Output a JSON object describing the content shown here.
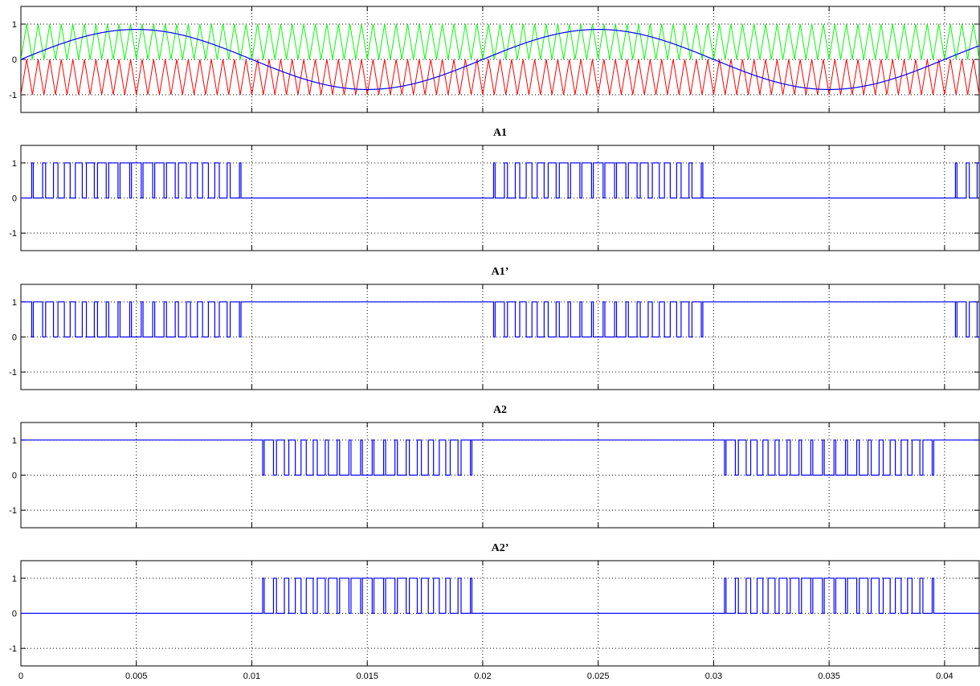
{
  "chart_data": [
    {
      "type": "line",
      "title": "",
      "xlabel": "",
      "ylabel": "",
      "xlim": [
        0,
        0.0415
      ],
      "ylim": [
        -1.5,
        1.5
      ],
      "yticks": [
        -1,
        0,
        1
      ],
      "grid": true,
      "series": [
        {
          "kind": "triangle_carrier",
          "color": "#00ff00",
          "frequency_hz": 2000,
          "min": 0,
          "max": 1
        },
        {
          "kind": "triangle_carrier",
          "color": "#ff0000",
          "frequency_hz": 2000,
          "min": -1,
          "max": 0
        },
        {
          "kind": "sine_reference",
          "color": "#0000ff",
          "frequency_hz": 50,
          "amplitude": 0.85,
          "phase_deg": 0
        }
      ]
    },
    {
      "type": "line",
      "title": "A1",
      "xlabel": "",
      "ylabel": "",
      "xlim": [
        0,
        0.0415
      ],
      "ylim": [
        -1.5,
        1.5
      ],
      "yticks": [
        -1,
        0,
        1
      ],
      "grid": true,
      "series": [
        {
          "kind": "pwm",
          "color": "#0000ff",
          "carrier": "upper",
          "invert": false
        }
      ]
    },
    {
      "type": "line",
      "title": "A1’",
      "xlabel": "",
      "ylabel": "",
      "xlim": [
        0,
        0.0415
      ],
      "ylim": [
        -1.5,
        1.5
      ],
      "yticks": [
        -1,
        0,
        1
      ],
      "grid": true,
      "series": [
        {
          "kind": "pwm",
          "color": "#0000ff",
          "carrier": "upper",
          "invert": true
        }
      ]
    },
    {
      "type": "line",
      "title": "A2",
      "xlabel": "",
      "ylabel": "",
      "xlim": [
        0,
        0.0415
      ],
      "ylim": [
        -1.5,
        1.5
      ],
      "yticks": [
        -1,
        0,
        1
      ],
      "grid": true,
      "series": [
        {
          "kind": "pwm",
          "color": "#0000ff",
          "carrier": "lower",
          "invert": false
        }
      ]
    },
    {
      "type": "line",
      "title": "A2’",
      "xlabel": "",
      "ylabel": "",
      "xlim": [
        0,
        0.0415
      ],
      "ylim": [
        -1.5,
        1.5
      ],
      "yticks": [
        -1,
        0,
        1
      ],
      "grid": true,
      "series": [
        {
          "kind": "pwm",
          "color": "#0000ff",
          "carrier": "lower",
          "invert": true
        }
      ]
    }
  ],
  "x_ticks": [
    0,
    0.005,
    0.01,
    0.015,
    0.02,
    0.025,
    0.03,
    0.035,
    0.04
  ],
  "x_tick_labels": [
    "0",
    "0.005",
    "0.01",
    "0.015",
    "0.02",
    "0.025",
    "0.03",
    "0.035",
    "0.04"
  ],
  "y_tick_labels": [
    "1",
    "0",
    "-1"
  ]
}
